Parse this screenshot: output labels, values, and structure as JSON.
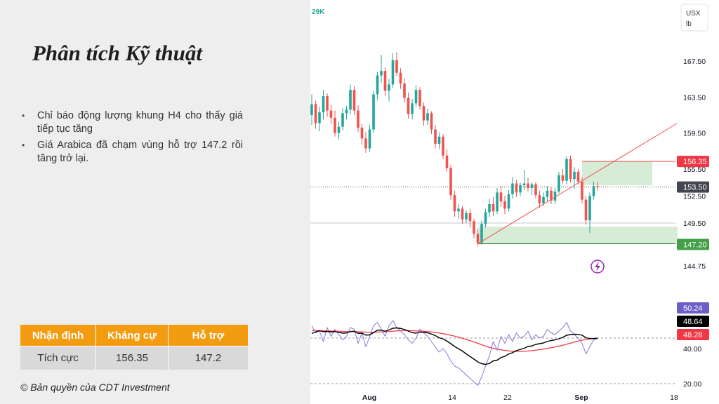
{
  "slide": {
    "title": "Phân tích Kỹ thuật",
    "bullets": [
      "Chỉ báo động lượng khung H4 cho thấy giá tiếp tục tăng",
      "Giá Arabica đã chạm vùng hỗ trợ 147.2 rồi tăng trở lại."
    ],
    "table": {
      "headers": [
        "Nhận định",
        "Kháng cự",
        "Hỗ trợ"
      ],
      "row": [
        "Tích cực",
        "156.35",
        "147.2"
      ]
    },
    "copyright": "© Bản quyền của CDT Investment"
  },
  "chart_data": {
    "type": "candlestick",
    "title_fragment": "29K",
    "unit_label": [
      "USX",
      "lb"
    ],
    "price_axis": {
      "range": [
        143,
        172
      ],
      "ticks": [
        "167.50",
        "163.50",
        "159.50",
        "155.50",
        "152.50",
        "149.50",
        "144.75"
      ],
      "labels": {
        "resistance": "156.35",
        "current": "153.50",
        "support": "147.20"
      }
    },
    "x_ticks": [
      "Aug",
      "14",
      "22",
      "Sep",
      "18"
    ],
    "candles": [
      [
        161.5,
        163.8,
        160.4,
        162.7
      ],
      [
        162.7,
        163.1,
        160.0,
        160.6
      ],
      [
        160.6,
        162.4,
        159.7,
        161.8
      ],
      [
        161.8,
        164.3,
        161.0,
        163.6
      ],
      [
        163.6,
        163.9,
        161.3,
        162.0
      ],
      [
        162.0,
        162.6,
        160.5,
        161.2
      ],
      [
        161.2,
        162.0,
        159.1,
        159.5
      ],
      [
        159.5,
        160.7,
        158.8,
        160.2
      ],
      [
        160.2,
        162.3,
        159.8,
        161.7
      ],
      [
        161.7,
        162.5,
        161.0,
        162.1
      ],
      [
        162.1,
        164.9,
        161.6,
        164.3
      ],
      [
        164.3,
        164.7,
        161.5,
        162.0
      ],
      [
        162.0,
        162.6,
        159.6,
        160.1
      ],
      [
        160.1,
        160.5,
        158.2,
        158.9
      ],
      [
        158.9,
        159.6,
        157.3,
        157.8
      ],
      [
        157.8,
        160.4,
        157.4,
        159.9
      ],
      [
        159.9,
        164.2,
        159.5,
        163.8
      ],
      [
        163.8,
        166.3,
        163.2,
        165.9
      ],
      [
        165.9,
        168.2,
        165.1,
        166.4
      ],
      [
        166.4,
        166.8,
        163.6,
        164.2
      ],
      [
        164.2,
        165.5,
        163.0,
        164.9
      ],
      [
        164.9,
        168.4,
        164.5,
        167.6
      ],
      [
        167.6,
        168.5,
        165.8,
        166.2
      ],
      [
        166.2,
        166.7,
        164.4,
        165.0
      ],
      [
        165.0,
        165.6,
        162.9,
        163.4
      ],
      [
        163.4,
        164.0,
        161.1,
        161.6
      ],
      [
        161.6,
        163.3,
        161.0,
        162.8
      ],
      [
        162.8,
        164.8,
        162.4,
        164.3
      ],
      [
        164.3,
        164.6,
        162.1,
        162.5
      ],
      [
        162.5,
        162.9,
        160.3,
        160.9
      ],
      [
        160.9,
        162.2,
        160.4,
        161.7
      ],
      [
        161.7,
        161.9,
        159.4,
        159.9
      ],
      [
        159.9,
        160.4,
        157.8,
        158.3
      ],
      [
        158.3,
        159.6,
        157.7,
        159.1
      ],
      [
        159.1,
        159.4,
        156.6,
        157.0
      ],
      [
        157.0,
        157.7,
        155.2,
        155.6
      ],
      [
        155.6,
        156.0,
        152.1,
        152.6
      ],
      [
        152.6,
        153.1,
        150.2,
        150.8
      ],
      [
        150.8,
        151.6,
        150.0,
        151.1
      ],
      [
        151.1,
        151.4,
        149.4,
        149.9
      ],
      [
        149.9,
        150.9,
        149.5,
        150.6
      ],
      [
        150.6,
        151.1,
        149.0,
        149.7
      ],
      [
        149.7,
        150.0,
        147.8,
        148.3
      ],
      [
        148.3,
        148.8,
        146.9,
        147.3
      ],
      [
        147.3,
        149.8,
        147.1,
        149.4
      ],
      [
        149.4,
        151.1,
        149.0,
        150.7
      ],
      [
        150.7,
        152.2,
        150.1,
        151.6
      ],
      [
        151.6,
        152.4,
        150.3,
        150.8
      ],
      [
        150.8,
        153.4,
        150.5,
        152.9
      ],
      [
        152.9,
        153.6,
        151.3,
        151.9
      ],
      [
        151.9,
        152.5,
        150.5,
        151.1
      ],
      [
        151.1,
        153.2,
        150.8,
        152.7
      ],
      [
        152.7,
        154.6,
        152.2,
        153.9
      ],
      [
        153.9,
        154.3,
        152.4,
        152.9
      ],
      [
        152.9,
        154.0,
        152.5,
        153.7
      ],
      [
        153.7,
        155.4,
        153.2,
        153.9
      ],
      [
        153.9,
        154.5,
        153.0,
        153.4
      ],
      [
        153.4,
        154.0,
        152.6,
        153.8
      ],
      [
        153.8,
        154.1,
        152.2,
        152.6
      ],
      [
        152.6,
        153.1,
        151.2,
        151.7
      ],
      [
        151.7,
        152.9,
        151.4,
        152.4
      ],
      [
        152.4,
        153.6,
        151.9,
        153.1
      ],
      [
        153.1,
        153.5,
        151.6,
        152.0
      ],
      [
        152.0,
        153.4,
        151.6,
        153.0
      ],
      [
        153.0,
        155.2,
        152.8,
        154.8
      ],
      [
        154.8,
        155.5,
        153.9,
        154.2
      ],
      [
        154.2,
        156.9,
        153.8,
        156.6
      ],
      [
        156.6,
        157.0,
        154.0,
        154.4
      ],
      [
        154.4,
        155.7,
        153.3,
        155.2
      ],
      [
        155.2,
        155.5,
        153.8,
        154.1
      ],
      [
        154.1,
        154.6,
        151.7,
        152.1
      ],
      [
        152.1,
        152.5,
        149.3,
        149.8
      ],
      [
        149.8,
        152.9,
        148.4,
        152.5
      ],
      [
        152.5,
        154.1,
        152.1,
        153.6
      ],
      [
        153.6,
        154.0,
        153.1,
        153.5
      ]
    ],
    "support_zone": [
      147.2,
      149.1
    ],
    "resistance_zone": [
      153.7,
      156.35
    ],
    "level_lines": [
      153.5,
      149.5
    ],
    "oscillator": {
      "range": [
        20,
        57
      ],
      "ticks": [
        "40.00",
        "20.00"
      ],
      "badges": [
        "50.24",
        "48.64",
        "48.28"
      ],
      "dashed_level": 46,
      "fast": [
        53,
        49,
        50,
        44,
        52,
        47,
        51,
        48,
        45,
        47,
        52,
        51,
        43,
        49,
        41,
        47,
        53,
        55,
        51,
        47,
        53,
        56,
        52,
        50,
        48,
        45,
        43,
        46,
        51,
        49,
        47,
        44,
        41,
        38,
        40,
        37,
        33,
        30,
        29,
        27,
        25,
        23,
        21,
        19,
        24,
        30,
        36,
        44,
        39,
        47,
        43,
        48,
        44,
        49,
        46,
        47,
        50,
        45,
        48,
        46,
        47,
        51,
        49,
        48,
        50,
        52,
        55,
        50,
        48,
        46,
        43,
        37,
        41,
        45,
        46
      ],
      "slow": [
        48.6,
        49.5,
        50.2,
        49.6,
        49.8,
        49.5,
        49.7,
        49.2,
        48.8,
        48.9,
        49.7,
        49.9,
        48.7,
        48.8,
        47.7,
        47.8,
        49.1,
        50.5,
        50.5,
        49.9,
        50.6,
        51.6,
        51.8,
        51.5,
        50.9,
        50.0,
        49.1,
        48.8,
        49.4,
        49.3,
        49.0,
        48.3,
        47.4,
        46.2,
        45.5,
        44.3,
        42.8,
        41.2,
        39.9,
        38.6,
        37.0,
        35.5,
        34.0,
        32.4,
        31.4,
        31.0,
        31.5,
        33.0,
        33.4,
        34.9,
        35.6,
        36.9,
        37.7,
        38.9,
        39.5,
        40.2,
        41.2,
        41.5,
        42.4,
        42.8,
        43.2,
        44.1,
        44.6,
        45.0,
        45.6,
        46.4,
        47.6,
        48.0,
        48.2,
        48.1,
        47.6,
        46.2,
        45.7,
        45.7,
        45.8
      ],
      "signal": [
        50.3,
        50.3,
        50.3,
        50.2,
        50.1,
        50.0,
        50.0,
        49.9,
        49.8,
        49.7,
        49.7,
        49.7,
        49.6,
        49.5,
        49.4,
        49.2,
        49.3,
        49.4,
        49.5,
        49.6,
        49.7,
        49.9,
        50.1,
        50.2,
        50.3,
        50.3,
        50.2,
        50.1,
        50.0,
        49.9,
        49.7,
        49.5,
        49.2,
        48.9,
        48.5,
        48.1,
        47.6,
        47.1,
        46.5,
        45.9,
        45.2,
        44.5,
        43.8,
        43.0,
        42.2,
        41.4,
        40.7,
        40.2,
        39.7,
        39.3,
        39.0,
        38.7,
        38.5,
        38.4,
        38.4,
        38.5,
        38.6,
        38.8,
        39.1,
        39.4,
        39.7,
        40.1,
        40.5,
        40.9,
        41.4,
        41.9,
        42.5,
        43.1,
        43.7,
        44.3,
        44.8,
        45.2,
        45.5,
        45.8,
        46.1
      ]
    },
    "colors": {
      "up": "#26a69a",
      "down": "#ef5350",
      "fast": "#8a77d8",
      "slow": "#000000",
      "signal": "#f23645",
      "support_zone": "#d7ecd6",
      "resistance_label": "#f23645",
      "support_label": "#43a047",
      "current_label": "#434651",
      "fast_label": "#6c5fc7"
    }
  }
}
